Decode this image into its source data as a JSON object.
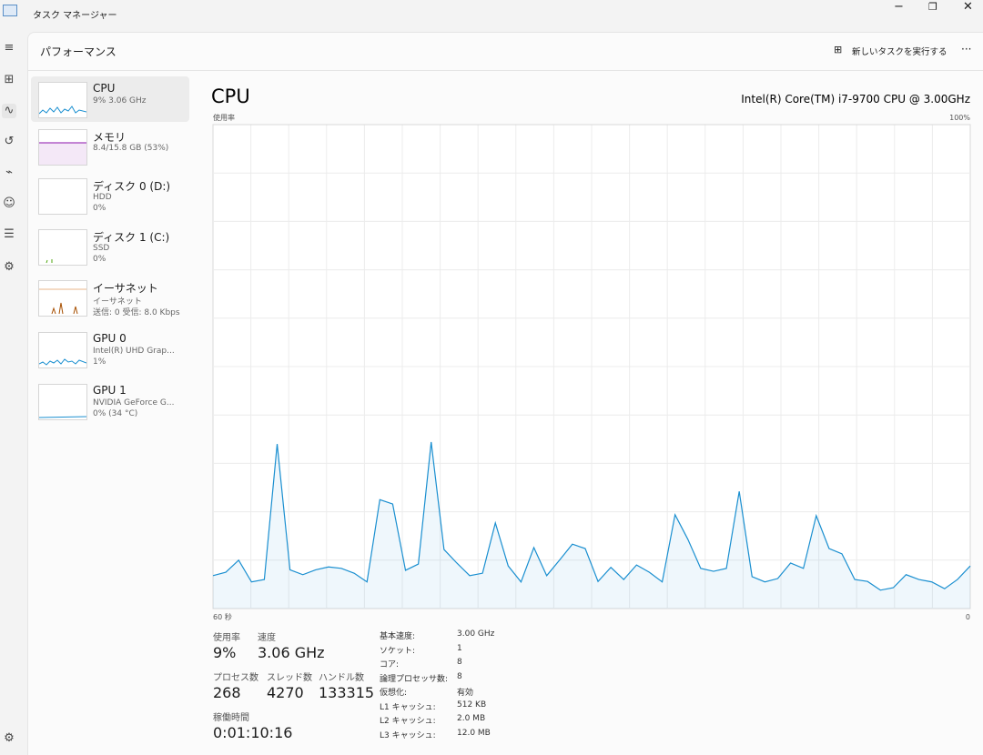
{
  "title_bar": {
    "title": "タスク マネージャー"
  },
  "header": {
    "title": "パフォーマンス",
    "run_task": "新しいタスクを実行する",
    "more": "···"
  },
  "devices": [
    {
      "name": "CPU",
      "detail": [
        "9% 3.06 GHz"
      ]
    },
    {
      "name": "メモリ",
      "detail": [
        "8.4/15.8 GB (53%)"
      ]
    },
    {
      "name": "ディスク 0 (D:)",
      "detail": [
        "HDD",
        "0%"
      ]
    },
    {
      "name": "ディスク 1 (C:)",
      "detail": [
        "SSD",
        "0%"
      ]
    },
    {
      "name": "イーサネット",
      "detail": [
        "イーサネット",
        "送信: 0 受信: 8.0 Kbps"
      ]
    },
    {
      "name": "GPU 0",
      "detail": [
        "Intel(R) UHD Grap...",
        "1%"
      ]
    },
    {
      "name": "GPU 1",
      "detail": [
        "NVIDIA GeForce G...",
        "0% (34 °C)"
      ]
    }
  ],
  "chart_data": {
    "type": "line",
    "title": "CPU",
    "subtitle": "Intel(R) Core(TM) i7-9700 CPU @ 3.00GHz",
    "ylabel": "使用率",
    "ylim": [
      0,
      100
    ],
    "yticks": [
      {
        "value": 100,
        "label": "100%"
      }
    ],
    "x_start_label": "60 秒",
    "x_end_label": "0",
    "values": [
      6.8,
      7.5,
      10,
      5.5,
      6,
      34,
      8,
      7,
      8,
      8.6,
      8.3,
      7.3,
      5.5,
      22.5,
      21.6,
      7.9,
      9.2,
      34.4,
      12.2,
      9.4,
      6.8,
      7.3,
      17.7,
      8.8,
      5.5,
      12.6,
      6.8,
      10,
      13.3,
      12.4,
      5.6,
      8.5,
      6,
      9,
      7.5,
      5.5,
      19.4,
      14.3,
      8.3,
      7.7,
      8.3,
      24.2,
      6.6,
      5.5,
      6.2,
      9.4,
      8.3,
      19.2,
      12.4,
      11.3,
      6,
      5.6,
      3.8,
      4.3,
      7,
      6,
      5.5,
      4.1,
      6,
      8.8
    ],
    "color": "#1a8fd0",
    "grid": true,
    "grid_rows": 10,
    "grid_cols": 20
  },
  "stats": [
    {
      "label": "使用率",
      "value": "9%"
    },
    {
      "label": "速度",
      "value": "3.06 GHz"
    },
    {
      "label": "プロセス数",
      "value": 268
    },
    {
      "label": "スレッド数",
      "value": 4270
    },
    {
      "label": "ハンドル数",
      "value": 133315
    },
    {
      "label": "稼働時間",
      "value": "0:01:10:16"
    }
  ],
  "specs": [
    [
      "基本速度:",
      "3.00 GHz"
    ],
    [
      "ソケット:",
      1
    ],
    [
      "コア:",
      8
    ],
    [
      "論理プロセッサ数:",
      8
    ],
    [
      "仮想化:",
      "有効"
    ],
    [
      "L1 キャッシュ:",
      "512 KB"
    ],
    [
      "L2 キャッシュ:",
      "2.0 MB"
    ],
    [
      "L3 キャッシュ:",
      "12.0 MB"
    ]
  ]
}
